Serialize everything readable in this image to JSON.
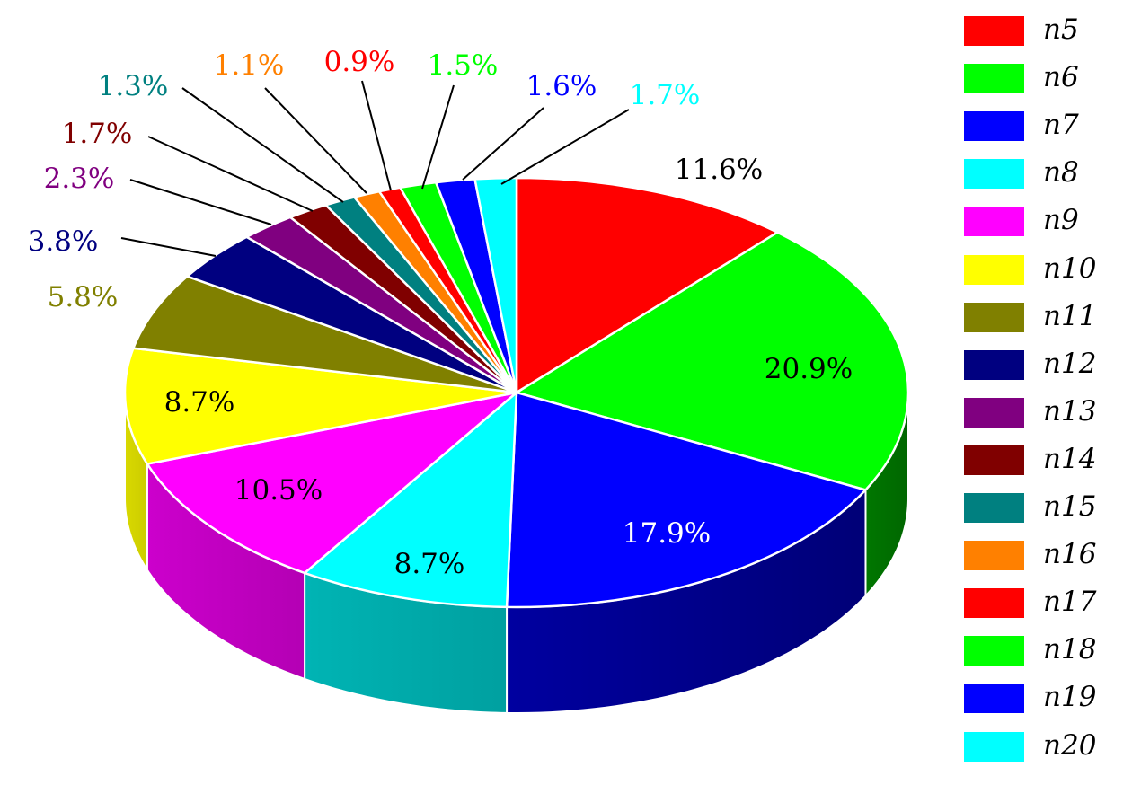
{
  "chart_data": {
    "type": "pie",
    "style": "3d",
    "start": "top",
    "direction": "clockwise",
    "legend_position": "right",
    "slices": [
      {
        "name": "n5",
        "value": 11.6,
        "label": "11.6%",
        "color": "#ff0000"
      },
      {
        "name": "n6",
        "value": 20.9,
        "label": "20.9%",
        "color": "#00ff00"
      },
      {
        "name": "n7",
        "value": 17.9,
        "label": "17.9%",
        "color": "#0000ff"
      },
      {
        "name": "n8",
        "value": 8.7,
        "label": "8.7%",
        "color": "#00ffff"
      },
      {
        "name": "n9",
        "value": 10.5,
        "label": "10.5%",
        "color": "#ff00ff"
      },
      {
        "name": "n10",
        "value": 8.7,
        "label": "8.7%",
        "color": "#ffff00"
      },
      {
        "name": "n11",
        "value": 5.8,
        "label": "5.8%",
        "color": "#808000"
      },
      {
        "name": "n12",
        "value": 3.8,
        "label": "3.8%",
        "color": "#000080"
      },
      {
        "name": "n13",
        "value": 2.3,
        "label": "2.3%",
        "color": "#800080"
      },
      {
        "name": "n14",
        "value": 1.7,
        "label": "1.7%",
        "color": "#800000"
      },
      {
        "name": "n15",
        "value": 1.3,
        "label": "1.3%",
        "color": "#008080"
      },
      {
        "name": "n16",
        "value": 1.1,
        "label": "1.1%",
        "color": "#ff8000"
      },
      {
        "name": "n17",
        "value": 0.9,
        "label": "0.9%",
        "color": "#ff0000"
      },
      {
        "name": "n18",
        "value": 1.5,
        "label": "1.5%",
        "color": "#00ff00"
      },
      {
        "name": "n19",
        "value": 1.6,
        "label": "1.6%",
        "color": "#0000ff"
      },
      {
        "name": "n20",
        "value": 1.7,
        "label": "1.7%",
        "color": "#00ffff"
      }
    ]
  }
}
